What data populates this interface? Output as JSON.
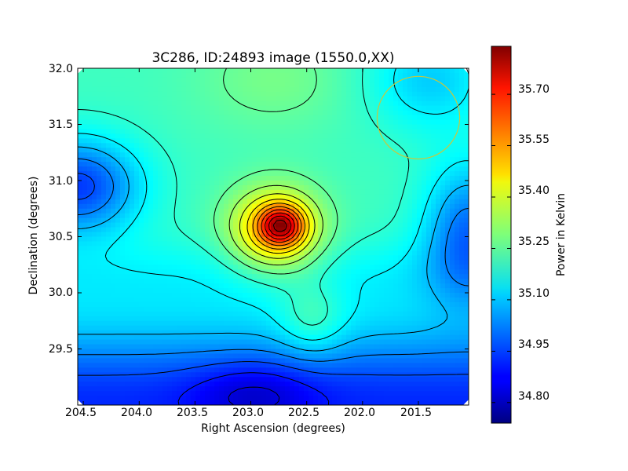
{
  "chart_data": {
    "type": "heatmap",
    "title": "3C286, ID:24893 image (1550.0,XX)",
    "xlabel": "Right Ascension (degrees)",
    "ylabel": "Declination (degrees)",
    "colorbar_label": "Power in Kelvin",
    "xlim": [
      204.55,
      201.05
    ],
    "ylim": [
      29.0,
      32.0
    ],
    "x_ticks": [
      204.5,
      204.0,
      203.5,
      203.0,
      202.5,
      202.0,
      201.5
    ],
    "x_tick_labels": [
      "204.5",
      "204.0",
      "203.5",
      "203.0",
      "202.5",
      "202.0",
      "201.5"
    ],
    "y_ticks": [
      29.5,
      30.0,
      30.5,
      31.0,
      31.5,
      32.0
    ],
    "y_tick_labels": [
      "29.5",
      "30.0",
      "30.5",
      "31.0",
      "31.5",
      "32.0"
    ],
    "colorbar_range": [
      34.74,
      35.84
    ],
    "colorbar_ticks": [
      34.8,
      34.95,
      35.1,
      35.25,
      35.4,
      35.55,
      35.7
    ],
    "colorbar_tick_labels": [
      "34.80",
      "34.95",
      "35.10",
      "35.25",
      "35.40",
      "35.55",
      "35.70"
    ],
    "colormap": "jet",
    "contour_color": "#000000",
    "beam_circle": {
      "center_ra": 201.5,
      "center_dec": 31.56,
      "radius_deg": 0.37,
      "color": "#c8c83c"
    },
    "features": [
      {
        "kind": "peak",
        "ra": 202.73,
        "dec": 30.6,
        "value": 35.84
      },
      {
        "kind": "minimum",
        "ra": 202.97,
        "dec": 29.0,
        "value": 34.74
      },
      {
        "kind": "high-plateau",
        "ra": 202.8,
        "dec": 31.9,
        "value": 35.24
      },
      {
        "kind": "low-region",
        "ra": 204.4,
        "dec": 30.95,
        "value": 34.92
      },
      {
        "kind": "low-region",
        "ra": 201.1,
        "dec": 30.55,
        "value": 34.96
      }
    ]
  }
}
